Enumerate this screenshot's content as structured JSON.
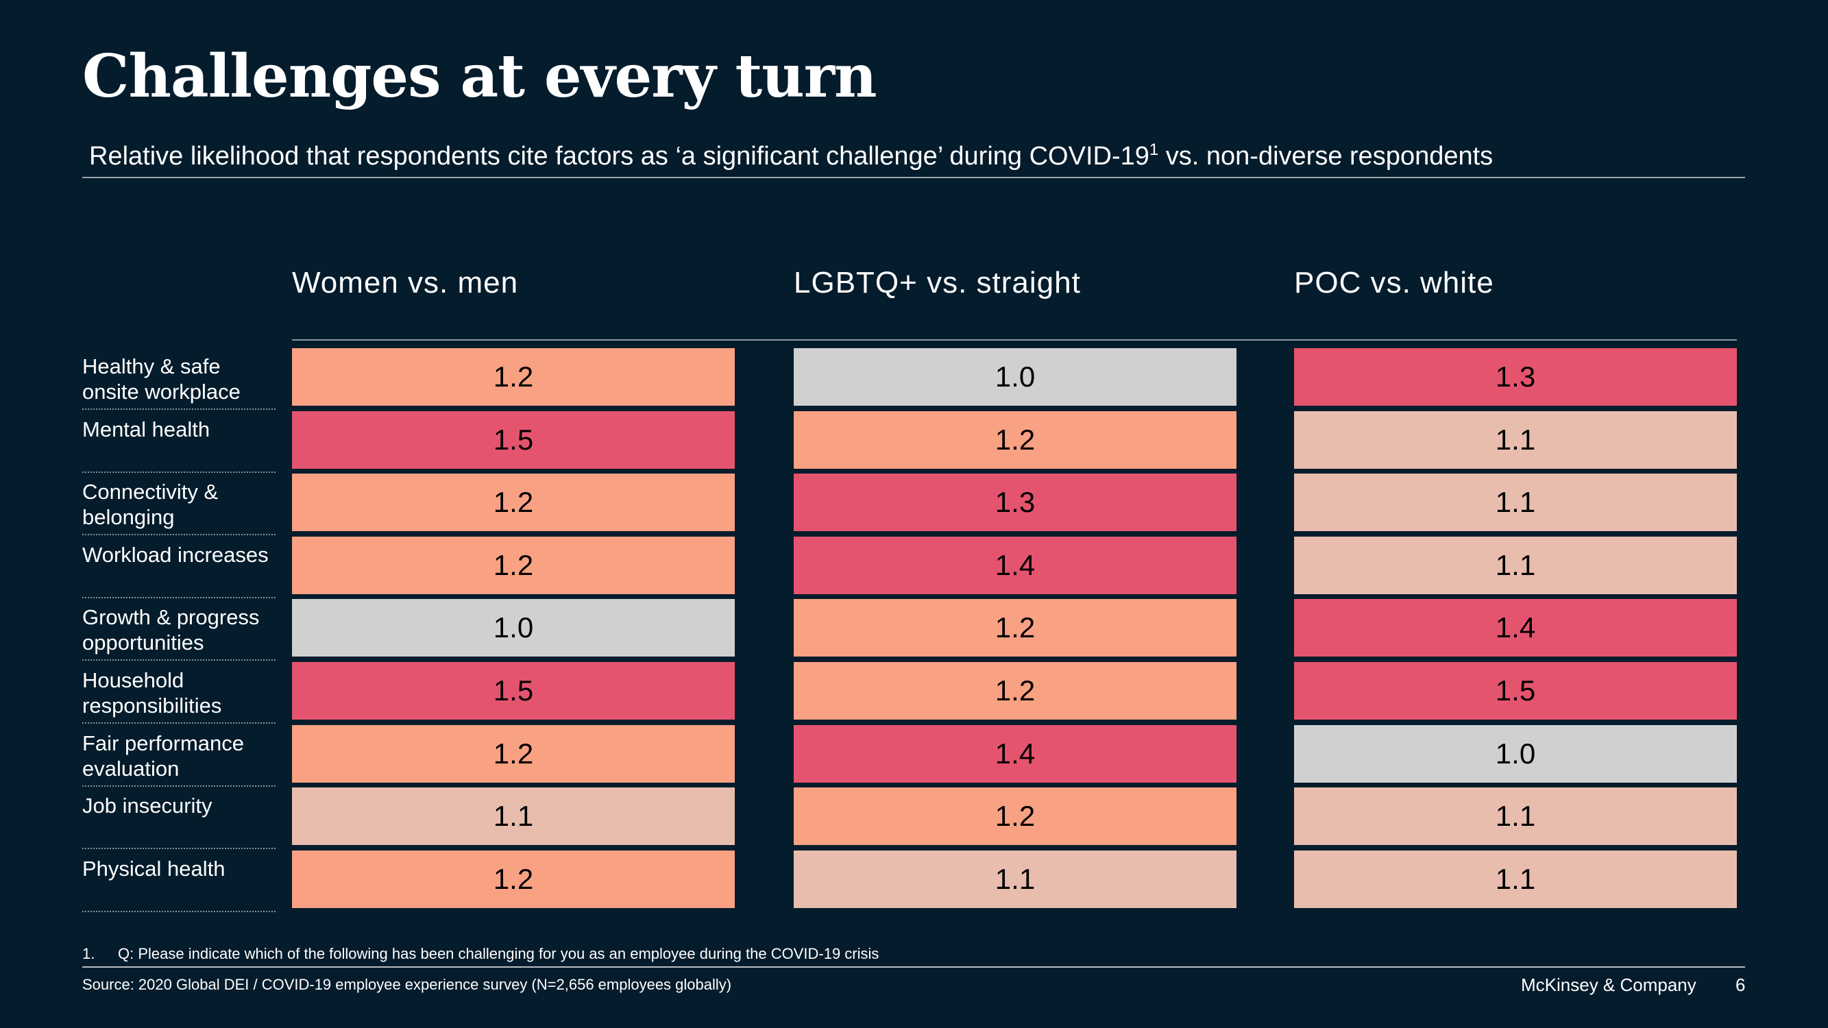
{
  "title": "Challenges at every turn",
  "subtitle": "Relative likelihood that respondents cite factors as ‘a significant challenge’ during COVID-19",
  "subtitle_sup": "1",
  "subtitle_tail": " vs. non-diverse respondents",
  "footnote_number": "1.",
  "footnote": "Q: Please indicate which of the following has been challenging for you as an employee during the COVID-19 crisis",
  "source": "Source: 2020 Global DEI / COVID-19 employee experience survey (N=2,656 employees globally)",
  "brand": "McKinsey & Company",
  "page_number": "6",
  "colors": {
    "background": "#051c2c",
    "scale": {
      "1.0": "#d0d0d0",
      "1.1": "#e8bdae",
      "1.2": "#f9a183",
      "1.3": "#e5546e",
      "1.4": "#e5546e",
      "1.5": "#e5546e"
    }
  },
  "chart_data": {
    "type": "heatmap",
    "title": "Challenges at every turn",
    "columns": [
      "Women vs. men",
      "LGBTQ+ vs. straight",
      "POC vs. white"
    ],
    "rows": [
      "Healthy & safe onsite workplace",
      "Mental health",
      "Connectivity & belonging",
      "Workload increases",
      "Growth & progress opportunities",
      "Household responsibilities",
      "Fair performance evaluation",
      "Job insecurity",
      "Physical health"
    ],
    "values": [
      [
        "1.2",
        "1.0",
        "1.3"
      ],
      [
        "1.5",
        "1.2",
        "1.1"
      ],
      [
        "1.2",
        "1.3",
        "1.1"
      ],
      [
        "1.2",
        "1.4",
        "1.1"
      ],
      [
        "1.0",
        "1.2",
        "1.4"
      ],
      [
        "1.5",
        "1.2",
        "1.5"
      ],
      [
        "1.2",
        "1.4",
        "1.0"
      ],
      [
        "1.1",
        "1.2",
        "1.1"
      ],
      [
        "1.2",
        "1.1",
        "1.1"
      ]
    ]
  }
}
